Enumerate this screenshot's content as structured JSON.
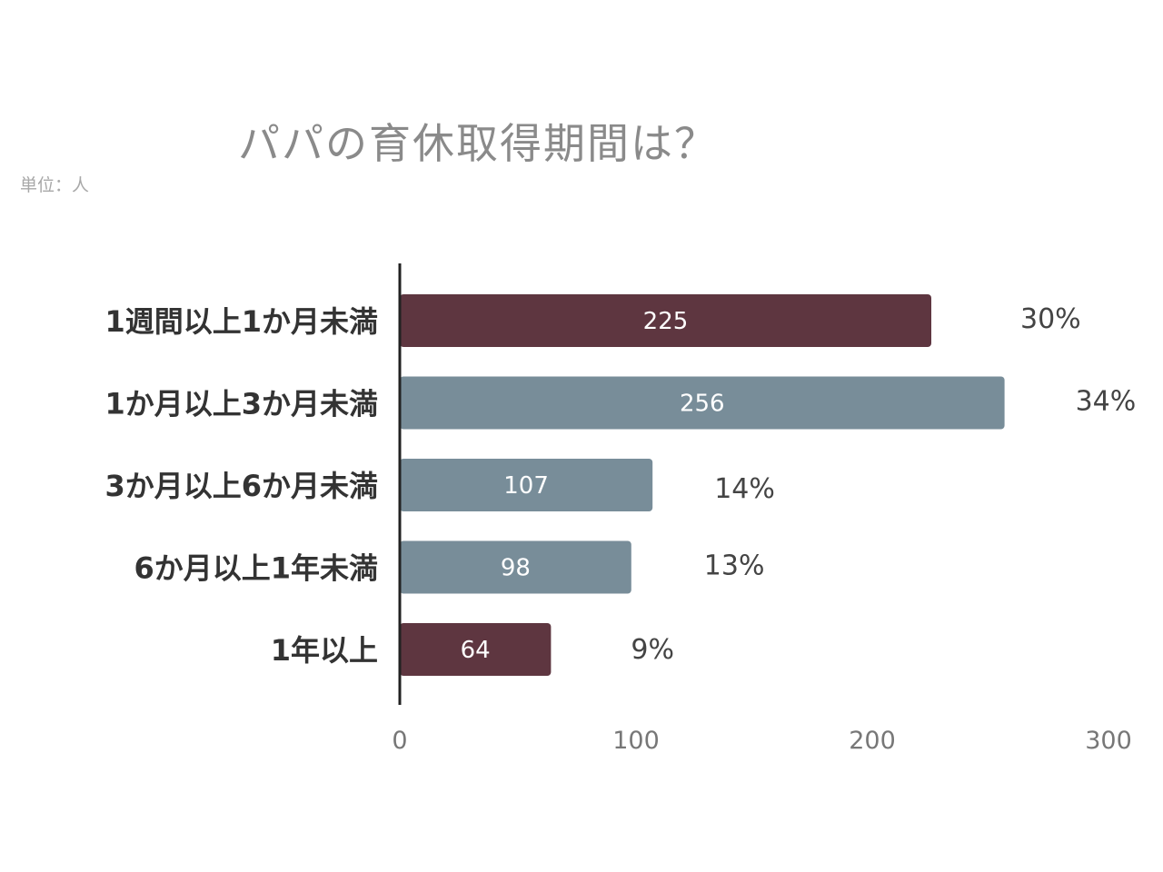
{
  "chart_data": {
    "type": "bar",
    "orientation": "horizontal",
    "title": "パパの育休取得期間は？",
    "unit_label": "単位：人",
    "categories": [
      "1週間以上1か月未満",
      "1か月以上3か月未満",
      "3か月以上6か月未満",
      "6か月以上1年未満",
      "1年以上"
    ],
    "values": [
      225,
      256,
      107,
      98,
      64
    ],
    "value_labels": [
      "225",
      "256",
      "107",
      "98",
      "64"
    ],
    "percent_labels": [
      "30%",
      "34%",
      "14%",
      "13%",
      "9%"
    ],
    "bar_colors": [
      "#5e3640",
      "#788d99",
      "#788d99",
      "#788d99",
      "#5e3640"
    ],
    "xlim": [
      0,
      300
    ],
    "x_ticks": [
      0,
      100,
      200,
      300
    ],
    "x_tick_labels": [
      "0",
      "100",
      "200",
      "300"
    ],
    "grid": false,
    "legend": "none"
  }
}
